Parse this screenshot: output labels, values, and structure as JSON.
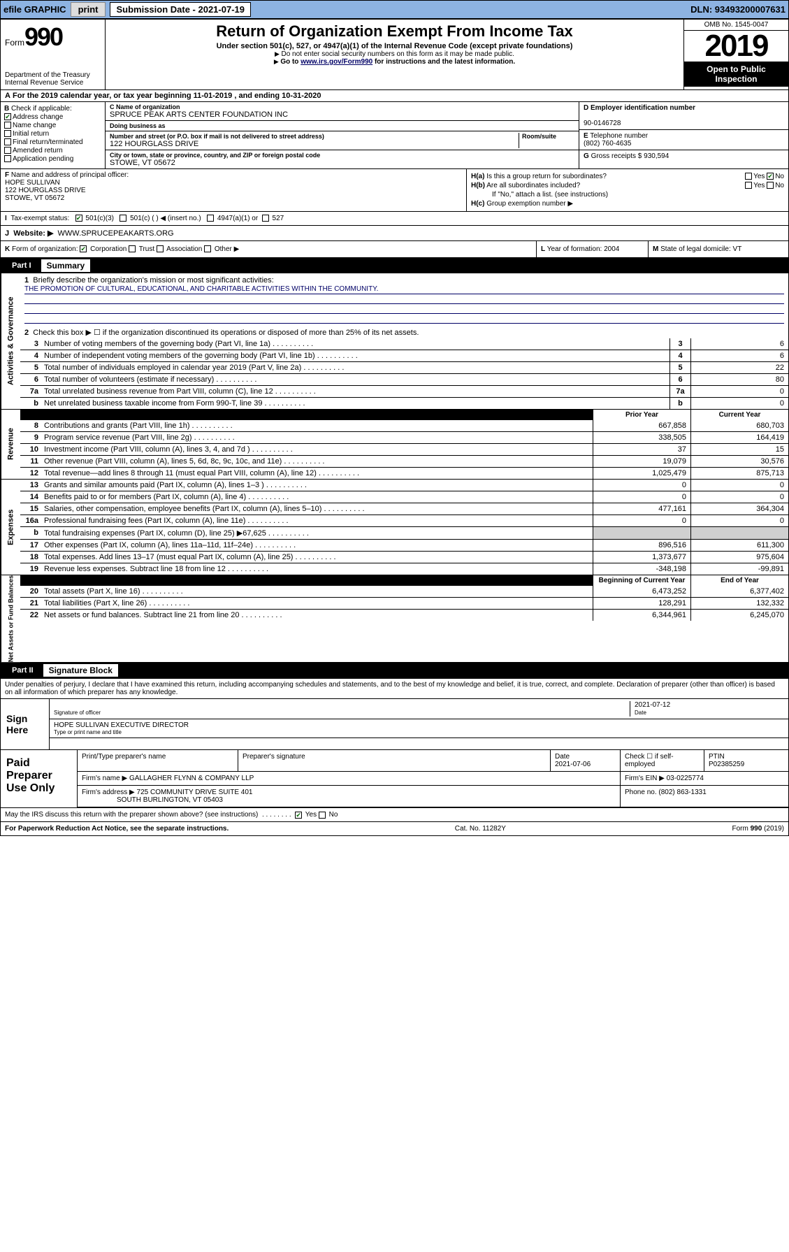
{
  "topbar": {
    "efile": "efile GRAPHIC",
    "print": "print",
    "subdate_label": "Submission Date - 2021-07-19",
    "dln": "DLN: 93493200007631"
  },
  "header": {
    "form_word": "Form",
    "form_no": "990",
    "dept": "Department of the Treasury\nInternal Revenue Service",
    "title": "Return of Organization Exempt From Income Tax",
    "sub1": "Under section 501(c), 527, or 4947(a)(1) of the Internal Revenue Code (except private foundations)",
    "sub2": "Do not enter social security numbers on this form as it may be made public.",
    "sub3_pre": "Go to ",
    "sub3_link": "www.irs.gov/Form990",
    "sub3_post": " for instructions and the latest information.",
    "omb": "OMB No. 1545-0047",
    "year": "2019",
    "openpub": "Open to Public Inspection"
  },
  "rowA": "For the 2019 calendar year, or tax year beginning 11-01-2019   , and ending 10-31-2020",
  "rowB": {
    "label": "Check if applicable:",
    "items": [
      "Address change",
      "Name change",
      "Initial return",
      "Final return/terminated",
      "Amended return",
      "Application pending"
    ],
    "checked": [
      true,
      false,
      false,
      false,
      false,
      false
    ]
  },
  "rowC": {
    "name_label": "Name of organization",
    "name": "SPRUCE PEAK ARTS CENTER FOUNDATION INC",
    "dba_label": "Doing business as",
    "addr_label": "Number and street (or P.O. box if mail is not delivered to street address)",
    "room_label": "Room/suite",
    "addr": "122 HOURGLASS DRIVE",
    "city_label": "City or town, state or province, country, and ZIP or foreign postal code",
    "city": "STOWE, VT  05672"
  },
  "rowD": {
    "label": "Employer identification number",
    "val": "90-0146728"
  },
  "rowE": {
    "label": "Telephone number",
    "val": "(802) 760-4635"
  },
  "rowG": {
    "label": "Gross receipts $",
    "val": "930,594"
  },
  "rowF": {
    "label": "Name and address of principal officer:",
    "name": "HOPE SULLIVAN",
    "addr": "122 HOURGLASS DRIVE",
    "city": "STOWE, VT  05672"
  },
  "rowH": {
    "a": "Is this a group return for subordinates?",
    "b": "Are all subordinates included?",
    "note": "If \"No,\" attach a list. (see instructions)",
    "c": "Group exemption number ▶"
  },
  "rowI": {
    "label": "Tax-exempt status:",
    "opts": [
      "501(c)(3)",
      "501(c) (  ) ◀ (insert no.)",
      "4947(a)(1) or",
      "527"
    ]
  },
  "rowJ": {
    "label": "Website: ▶",
    "val": "WWW.SPRUCEPEAKARTS.ORG"
  },
  "rowK": {
    "label": "Form of organization:",
    "opts": [
      "Corporation",
      "Trust",
      "Association",
      "Other ▶"
    ]
  },
  "rowL": {
    "label": "Year of formation:",
    "val": "2004"
  },
  "rowM": {
    "label": "State of legal domicile:",
    "val": "VT"
  },
  "partI": {
    "tab": "Part I",
    "title": "Summary"
  },
  "side_labels": [
    "Activities & Governance",
    "Revenue",
    "Expenses",
    "Net Assets or Fund Balances"
  ],
  "governance": {
    "l1": "Briefly describe the organization's mission or most significant activities:",
    "mission": "THE PROMOTION OF CULTURAL, EDUCATIONAL, AND CHARITABLE ACTIVITIES WITHIN THE COMMUNITY.",
    "l2": "Check this box ▶ ☐ if the organization discontinued its operations or disposed of more than 25% of its net assets.",
    "rows": [
      {
        "n": "3",
        "t": "Number of voting members of the governing body (Part VI, line 1a)",
        "v": "6"
      },
      {
        "n": "4",
        "t": "Number of independent voting members of the governing body (Part VI, line 1b)",
        "v": "6"
      },
      {
        "n": "5",
        "t": "Total number of individuals employed in calendar year 2019 (Part V, line 2a)",
        "v": "22"
      },
      {
        "n": "6",
        "t": "Total number of volunteers (estimate if necessary)",
        "v": "80"
      },
      {
        "n": "7a",
        "t": "Total unrelated business revenue from Part VIII, column (C), line 12",
        "v": "0"
      },
      {
        "n": "b",
        "t": "Net unrelated business taxable income from Form 990-T, line 39",
        "v": "0"
      }
    ]
  },
  "yearhdr": {
    "prior": "Prior Year",
    "current": "Current Year"
  },
  "revenue": [
    {
      "n": "8",
      "t": "Contributions and grants (Part VIII, line 1h)",
      "p": "667,858",
      "c": "680,703"
    },
    {
      "n": "9",
      "t": "Program service revenue (Part VIII, line 2g)",
      "p": "338,505",
      "c": "164,419"
    },
    {
      "n": "10",
      "t": "Investment income (Part VIII, column (A), lines 3, 4, and 7d )",
      "p": "37",
      "c": "15"
    },
    {
      "n": "11",
      "t": "Other revenue (Part VIII, column (A), lines 5, 6d, 8c, 9c, 10c, and 11e)",
      "p": "19,079",
      "c": "30,576"
    },
    {
      "n": "12",
      "t": "Total revenue—add lines 8 through 11 (must equal Part VIII, column (A), line 12)",
      "p": "1,025,479",
      "c": "875,713"
    }
  ],
  "expenses": [
    {
      "n": "13",
      "t": "Grants and similar amounts paid (Part IX, column (A), lines 1–3 )",
      "p": "0",
      "c": "0"
    },
    {
      "n": "14",
      "t": "Benefits paid to or for members (Part IX, column (A), line 4)",
      "p": "0",
      "c": "0"
    },
    {
      "n": "15",
      "t": "Salaries, other compensation, employee benefits (Part IX, column (A), lines 5–10)",
      "p": "477,161",
      "c": "364,304"
    },
    {
      "n": "16a",
      "t": "Professional fundraising fees (Part IX, column (A), line 11e)",
      "p": "0",
      "c": "0"
    },
    {
      "n": "b",
      "t": "Total fundraising expenses (Part IX, column (D), line 25) ▶67,625",
      "p": "",
      "c": "",
      "shade": true
    },
    {
      "n": "17",
      "t": "Other expenses (Part IX, column (A), lines 11a–11d, 11f–24e)",
      "p": "896,516",
      "c": "611,300"
    },
    {
      "n": "18",
      "t": "Total expenses. Add lines 13–17 (must equal Part IX, column (A), line 25)",
      "p": "1,373,677",
      "c": "975,604"
    },
    {
      "n": "19",
      "t": "Revenue less expenses. Subtract line 18 from line 12",
      "p": "-348,198",
      "c": "-99,891"
    }
  ],
  "netassets_hdr": {
    "begin": "Beginning of Current Year",
    "end": "End of Year"
  },
  "netassets": [
    {
      "n": "20",
      "t": "Total assets (Part X, line 16)",
      "p": "6,473,252",
      "c": "6,377,402"
    },
    {
      "n": "21",
      "t": "Total liabilities (Part X, line 26)",
      "p": "128,291",
      "c": "132,332"
    },
    {
      "n": "22",
      "t": "Net assets or fund balances. Subtract line 21 from line 20",
      "p": "6,344,961",
      "c": "6,245,070"
    }
  ],
  "partII": {
    "tab": "Part II",
    "title": "Signature Block"
  },
  "perjury": "Under penalties of perjury, I declare that I have examined this return, including accompanying schedules and statements, and to the best of my knowledge and belief, it is true, correct, and complete. Declaration of preparer (other than officer) is based on all information of which preparer has any knowledge.",
  "sign": {
    "left": "Sign Here",
    "sigoff": "Signature of officer",
    "date": "2021-07-12",
    "date_lbl": "Date",
    "name": "HOPE SULLIVAN  EXECUTIVE DIRECTOR",
    "name_lbl": "Type or print name and title"
  },
  "paid": {
    "left": "Paid Preparer Use Only",
    "h1": "Print/Type preparer's name",
    "h2": "Preparer's signature",
    "h3": "Date",
    "date": "2021-07-06",
    "h4": "Check ☐ if self-employed",
    "h5": "PTIN",
    "ptin": "P02385259",
    "firm_lbl": "Firm's name    ▶",
    "firm": "GALLAGHER FLYNN & COMPANY LLP",
    "ein_lbl": "Firm's EIN ▶",
    "ein": "03-0225774",
    "addr_lbl": "Firm's address ▶",
    "addr": "725 COMMUNITY DRIVE SUITE 401",
    "addr2": "SOUTH BURLINGTON, VT  05403",
    "phone_lbl": "Phone no.",
    "phone": "(802) 863-1331"
  },
  "discuss": "May the IRS discuss this return with the preparer shown above? (see instructions)",
  "footer": {
    "pra": "For Paperwork Reduction Act Notice, see the separate instructions.",
    "cat": "Cat. No. 11282Y",
    "form": "Form 990 (2019)"
  }
}
